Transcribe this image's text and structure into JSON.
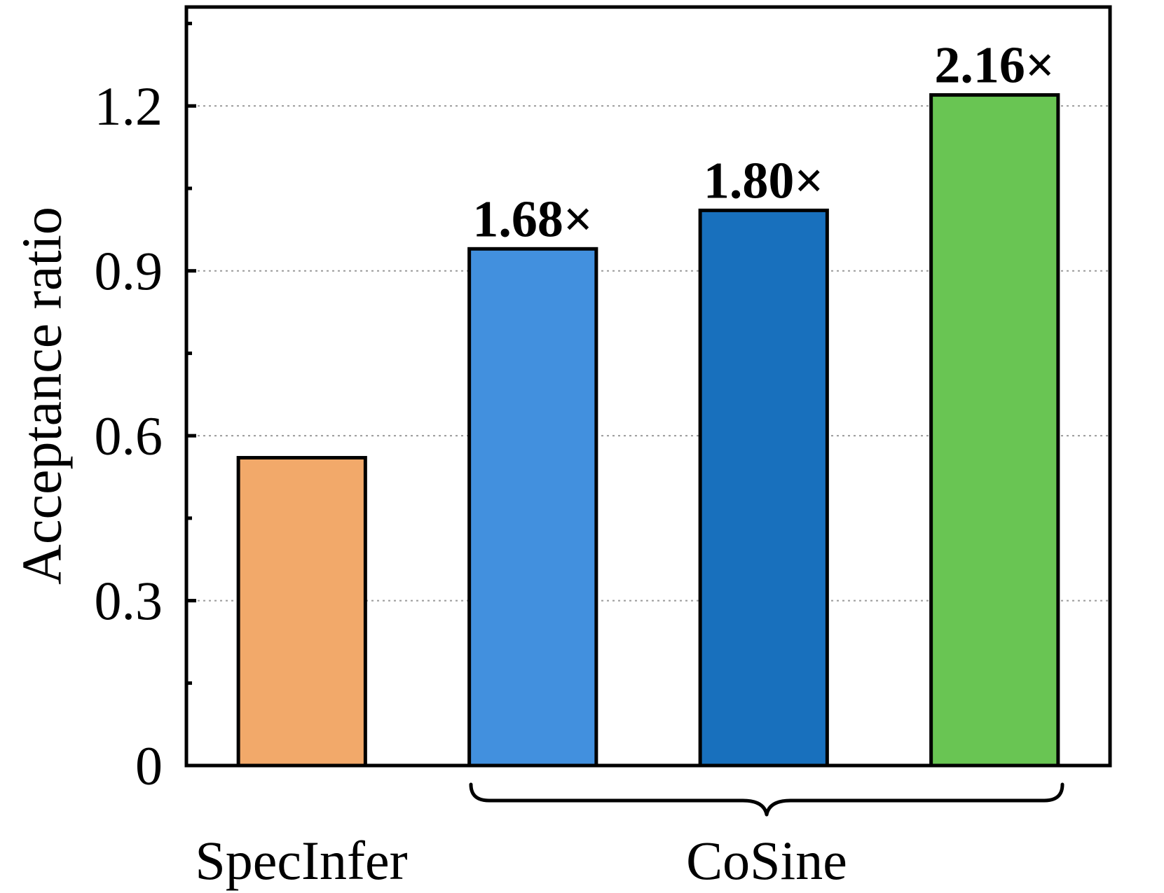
{
  "chart_data": {
    "type": "bar",
    "ylabel": "Acceptance ratio",
    "ylim": [
      0,
      1.38
    ],
    "yticks": [
      {
        "value": 0,
        "label": "0"
      },
      {
        "value": 0.3,
        "label": "0.3"
      },
      {
        "value": 0.6,
        "label": "0.6"
      },
      {
        "value": 0.9,
        "label": "0.9"
      },
      {
        "value": 1.2,
        "label": "1.2"
      }
    ],
    "grid": true,
    "bars": [
      {
        "value": 0.56,
        "color": "#F2A96A",
        "label": ""
      },
      {
        "value": 0.94,
        "color": "#4290DE",
        "label": "1.68×"
      },
      {
        "value": 1.01,
        "color": "#1870BD",
        "label": "1.80×"
      },
      {
        "value": 1.22,
        "color": "#69C553",
        "label": "2.16×"
      }
    ],
    "category_labels": {
      "specinfer": "SpecInfer",
      "cosine": "CoSine"
    }
  }
}
